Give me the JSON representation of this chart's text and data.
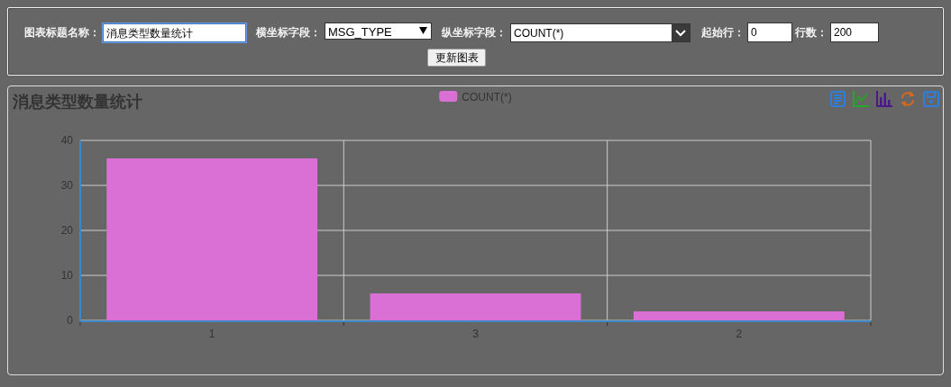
{
  "chart_data": {
    "type": "bar",
    "title": "消息类型数量统计",
    "categories": [
      "1",
      "3",
      "2"
    ],
    "series": [
      {
        "name": "COUNT(*)",
        "color": "#da70d6",
        "values": [
          36,
          6,
          2
        ]
      }
    ],
    "ylim": [
      0,
      40
    ],
    "yticks": [
      0,
      10,
      20,
      30,
      40
    ],
    "grid": true,
    "legend": "top",
    "annotations": [
      "图表标题名称：",
      "消息类型数量统计",
      "横坐标字段：",
      "MSG_TYPE",
      "纵坐标字段：",
      "COUNT(*)",
      "起始行：",
      "0",
      "行数：",
      "200",
      "更新图表"
    ]
  }
}
